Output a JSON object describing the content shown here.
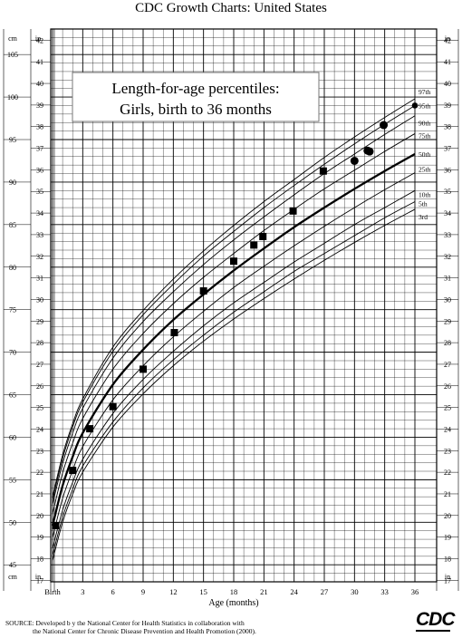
{
  "header": {
    "title": "CDC Growth Charts: United States"
  },
  "source": {
    "line1": "SOURCE: Developed b  y the National Center for Health Statistics in collaboration with",
    "line2": "the National Center for Chronic Disease Prevention and Health Promotion (2000)."
  },
  "logo": {
    "text": "CDC"
  },
  "chart_data": {
    "type": "line",
    "title_lines": [
      "Length-for-age percentiles:",
      "Girls, birth to 36 months"
    ],
    "xlabel": "Age (months)",
    "x_ticks": [
      {
        "value": 0,
        "label": "Birth"
      },
      {
        "value": 3,
        "label": "3"
      },
      {
        "value": 6,
        "label": "6"
      },
      {
        "value": 9,
        "label": "9"
      },
      {
        "value": 12,
        "label": "12"
      },
      {
        "value": 15,
        "label": "15"
      },
      {
        "value": 18,
        "label": "18"
      },
      {
        "value": 21,
        "label": "21"
      },
      {
        "value": 24,
        "label": "24"
      },
      {
        "value": 27,
        "label": "27"
      },
      {
        "value": 30,
        "label": "30"
      },
      {
        "value": 33,
        "label": "33"
      },
      {
        "value": 36,
        "label": "36"
      }
    ],
    "xlim": [
      0,
      36
    ],
    "y_left": {
      "unit_label": "cm",
      "range": [
        43,
        108
      ],
      "tick_labels": [
        "45",
        "50",
        "55",
        "60",
        "65",
        "70",
        "75",
        "80",
        "85",
        "90",
        "95",
        "100",
        "105"
      ],
      "tick_values": [
        45,
        50,
        55,
        60,
        65,
        70,
        75,
        80,
        85,
        90,
        95,
        100,
        105
      ]
    },
    "y_inches": {
      "unit_label": "in",
      "range": [
        16.93,
        42.52
      ],
      "tick_labels": [
        "17",
        "18",
        "19",
        "20",
        "21",
        "22",
        "23",
        "24",
        "25",
        "26",
        "27",
        "28",
        "29",
        "30",
        "31",
        "32",
        "33",
        "34",
        "35",
        "36",
        "37",
        "38",
        "39",
        "40",
        "41",
        "42"
      ]
    },
    "grid": true,
    "percentile_ages": [
      0,
      1,
      2,
      3,
      6,
      9,
      12,
      15,
      18,
      21,
      24,
      27,
      30,
      33,
      36
    ],
    "series": [
      {
        "name": "97th",
        "values": [
          53.0,
          57.9,
          61.6,
          64.5,
          70.6,
          74.9,
          78.6,
          81.9,
          84.9,
          87.7,
          90.3,
          92.9,
          95.3,
          97.6,
          99.8
        ]
      },
      {
        "name": "95th",
        "values": [
          52.6,
          57.5,
          61.2,
          64.1,
          70.1,
          74.4,
          78.0,
          81.3,
          84.2,
          87.0,
          89.6,
          92.1,
          94.5,
          96.8,
          99.0
        ]
      },
      {
        "name": "90th",
        "values": [
          52.1,
          56.9,
          60.5,
          63.4,
          69.3,
          73.6,
          77.1,
          80.3,
          83.2,
          85.9,
          88.5,
          91.0,
          93.3,
          95.6,
          97.8
        ]
      },
      {
        "name": "75th",
        "values": [
          51.0,
          55.8,
          59.3,
          62.2,
          68.0,
          72.2,
          75.7,
          78.8,
          81.6,
          84.3,
          86.8,
          89.2,
          91.4,
          93.6,
          95.7
        ]
      },
      {
        "name": "50th",
        "values": [
          49.6,
          54.3,
          57.7,
          60.5,
          66.2,
          70.3,
          73.8,
          76.8,
          79.6,
          82.2,
          84.7,
          87.0,
          89.2,
          91.3,
          93.3
        ]
      },
      {
        "name": "25th",
        "values": [
          48.2,
          52.8,
          56.1,
          58.9,
          64.4,
          68.4,
          71.8,
          74.8,
          77.6,
          80.1,
          82.5,
          84.8,
          87.0,
          89.1,
          91.1
        ]
      },
      {
        "name": "10th",
        "values": [
          46.9,
          51.4,
          54.7,
          57.4,
          62.8,
          66.8,
          70.1,
          73.1,
          75.8,
          78.2,
          80.6,
          82.8,
          85.0,
          87.0,
          89.0
        ]
      },
      {
        "name": "5th",
        "values": [
          46.1,
          50.6,
          53.9,
          56.6,
          61.8,
          65.8,
          69.1,
          72.0,
          74.7,
          77.1,
          79.5,
          81.6,
          83.7,
          85.8,
          87.7
        ]
      },
      {
        "name": "3rd",
        "values": [
          45.5,
          50.0,
          53.3,
          55.9,
          61.2,
          65.1,
          68.4,
          71.3,
          73.9,
          76.3,
          78.6,
          80.8,
          82.9,
          84.9,
          86.8
        ]
      }
    ],
    "measurements": [
      {
        "age": 0.3,
        "cm": 49.6,
        "marker": "square"
      },
      {
        "age": 2.0,
        "cm": 56.1,
        "marker": "square"
      },
      {
        "age": 3.7,
        "cm": 61.0,
        "marker": "square"
      },
      {
        "age": 6.0,
        "cm": 63.6,
        "marker": "square"
      },
      {
        "age": 9.0,
        "cm": 68.0,
        "marker": "square"
      },
      {
        "age": 12.1,
        "cm": 72.3,
        "marker": "square"
      },
      {
        "age": 15.0,
        "cm": 77.2,
        "marker": "square"
      },
      {
        "age": 18.0,
        "cm": 80.7,
        "marker": "square"
      },
      {
        "age": 20.0,
        "cm": 82.6,
        "marker": "square"
      },
      {
        "age": 20.9,
        "cm": 83.6,
        "marker": "square"
      },
      {
        "age": 23.9,
        "cm": 86.6,
        "marker": "square"
      },
      {
        "age": 26.9,
        "cm": 91.3,
        "marker": "square"
      },
      {
        "age": 30.0,
        "cm": 92.5,
        "marker": "circle"
      },
      {
        "age": 31.3,
        "cm": 93.7,
        "marker": "circle"
      },
      {
        "age": 31.5,
        "cm": 93.6,
        "marker": "circle"
      },
      {
        "age": 32.9,
        "cm": 96.7,
        "marker": "circle"
      },
      {
        "age": 36.0,
        "cm": 99.0,
        "marker": "circle"
      }
    ]
  }
}
